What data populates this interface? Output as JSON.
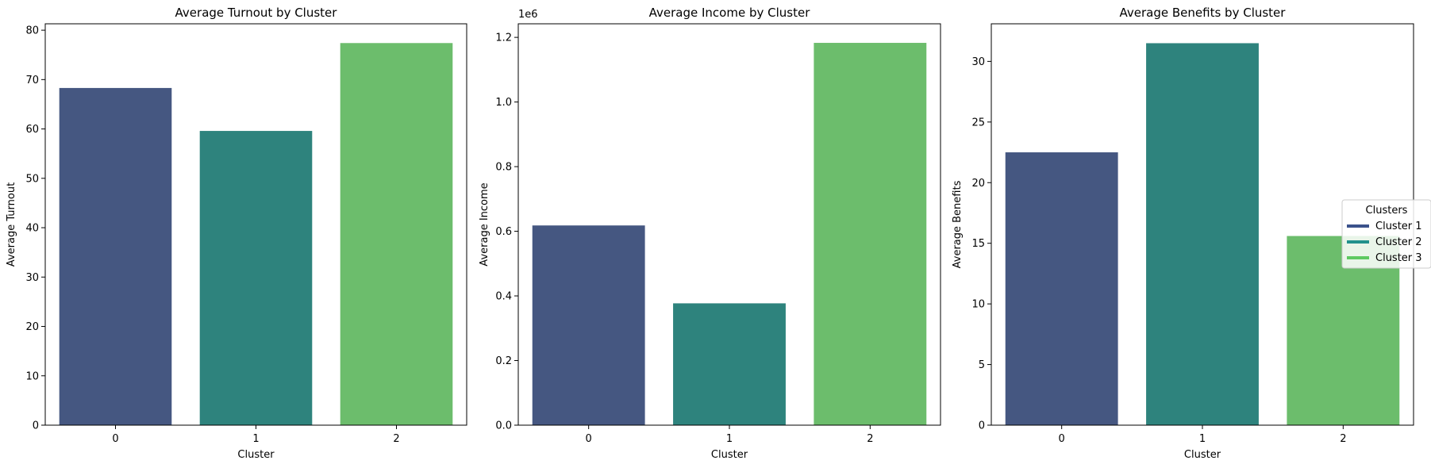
{
  "figure": {
    "legend": {
      "title": "Clusters",
      "items": [
        {
          "label": "Cluster 1",
          "color": "#3b528b"
        },
        {
          "label": "Cluster 2",
          "color": "#21918c"
        },
        {
          "label": "Cluster 3",
          "color": "#5ec962"
        }
      ]
    }
  },
  "chart_data": [
    {
      "type": "bar",
      "title": "Average Turnout by Cluster",
      "xlabel": "Cluster",
      "ylabel": "Average Turnout",
      "categories": [
        "0",
        "1",
        "2"
      ],
      "values": [
        68.3,
        59.6,
        77.4
      ],
      "colors": [
        "#455781",
        "#2e837d",
        "#6cbd6c"
      ],
      "ylim": [
        0,
        81.3
      ],
      "yticks": [
        0,
        10,
        20,
        30,
        40,
        50,
        60,
        70,
        80
      ],
      "ytick_labels": [
        "0",
        "10",
        "20",
        "30",
        "40",
        "50",
        "60",
        "70",
        "80"
      ],
      "offset_label": "",
      "grid": false
    },
    {
      "type": "bar",
      "title": "Average Income by Cluster",
      "xlabel": "Cluster",
      "ylabel": "Average Income",
      "categories": [
        "0",
        "1",
        "2"
      ],
      "values": [
        0.618,
        0.377,
        1.183
      ],
      "colors": [
        "#455781",
        "#2e837d",
        "#6cbd6c"
      ],
      "ylim": [
        0,
        1.242
      ],
      "yticks": [
        0,
        0.2,
        0.4,
        0.6,
        0.8,
        1.0,
        1.2
      ],
      "ytick_labels": [
        "0.0",
        "0.2",
        "0.4",
        "0.6",
        "0.8",
        "1.0",
        "1.2"
      ],
      "offset_label": "1e6",
      "grid": false
    },
    {
      "type": "bar",
      "title": "Average Benefits by Cluster",
      "xlabel": "Cluster",
      "ylabel": "Average Benefits",
      "categories": [
        "0",
        "1",
        "2"
      ],
      "values": [
        22.5,
        31.5,
        15.6
      ],
      "colors": [
        "#455781",
        "#2e837d",
        "#6cbd6c"
      ],
      "ylim": [
        0,
        33.1
      ],
      "yticks": [
        0,
        5,
        10,
        15,
        20,
        25,
        30
      ],
      "ytick_labels": [
        "0",
        "5",
        "10",
        "15",
        "20",
        "25",
        "30"
      ],
      "offset_label": "",
      "grid": false,
      "legend": "center-right"
    }
  ]
}
